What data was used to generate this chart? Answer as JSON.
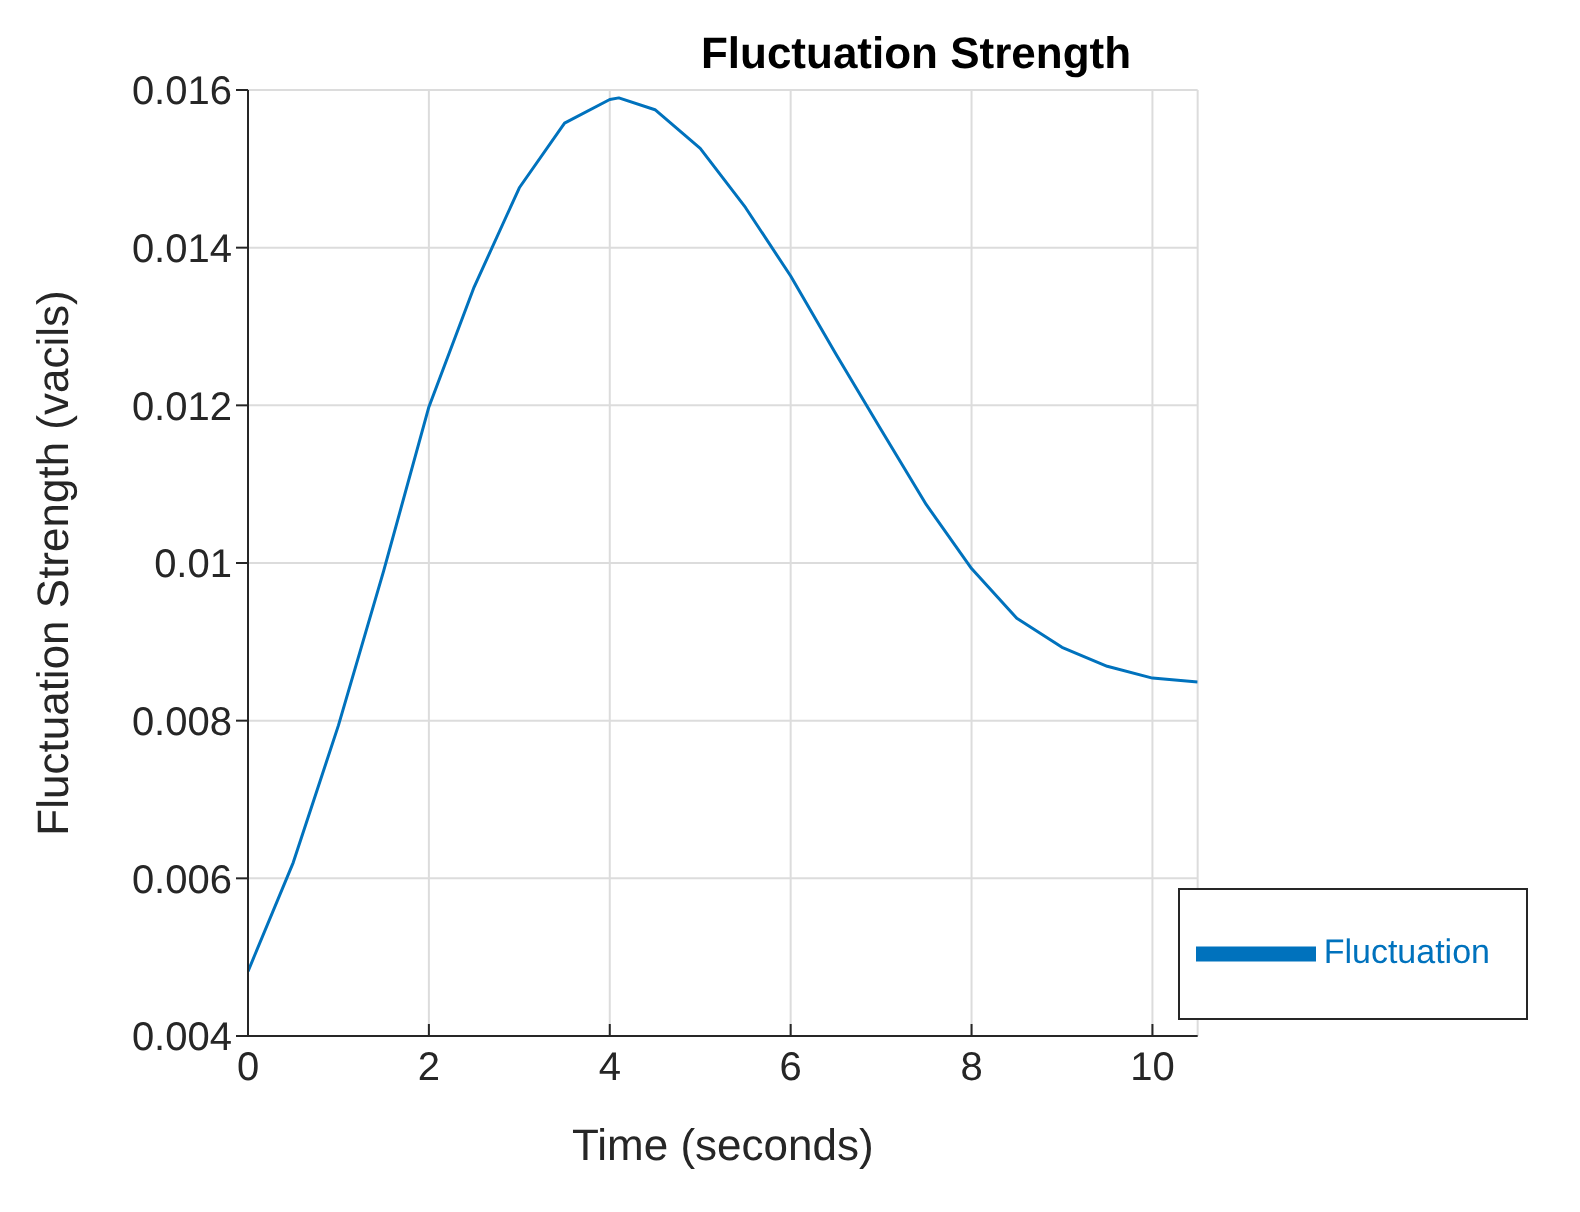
{
  "chart_data": {
    "type": "line",
    "title": "Fluctuation Strength",
    "xlabel": "Time (seconds)",
    "ylabel": "Fluctuation Strength (vacils)",
    "x": [
      0,
      0.5,
      1,
      1.5,
      2,
      2.5,
      3,
      3.5,
      4,
      4.1,
      4.5,
      5,
      5.5,
      6,
      6.5,
      7,
      7.5,
      8,
      8.5,
      9,
      9.5,
      10,
      10.5
    ],
    "series": [
      {
        "name": "Fluctuation",
        "color": "#0072bd",
        "values": [
          0.00482,
          0.0062,
          0.00794,
          0.0099,
          0.01198,
          0.0135,
          0.01476,
          0.01558,
          0.01588,
          0.0159,
          0.01575,
          0.01526,
          0.01451,
          0.01364,
          0.01265,
          0.01169,
          0.01074,
          0.00993,
          0.0093,
          0.00893,
          0.00869,
          0.00854,
          0.00849
        ]
      }
    ],
    "xlim": [
      0,
      10.5
    ],
    "xticks": [
      0,
      2,
      4,
      6,
      8,
      10
    ],
    "ylim": [
      0.004,
      0.016
    ],
    "yticks": [
      0.004,
      0.006,
      0.008,
      0.01,
      0.012,
      0.014,
      0.016
    ],
    "grid": true,
    "legend": "bottom right",
    "marker": "none",
    "line_style": "solid"
  }
}
